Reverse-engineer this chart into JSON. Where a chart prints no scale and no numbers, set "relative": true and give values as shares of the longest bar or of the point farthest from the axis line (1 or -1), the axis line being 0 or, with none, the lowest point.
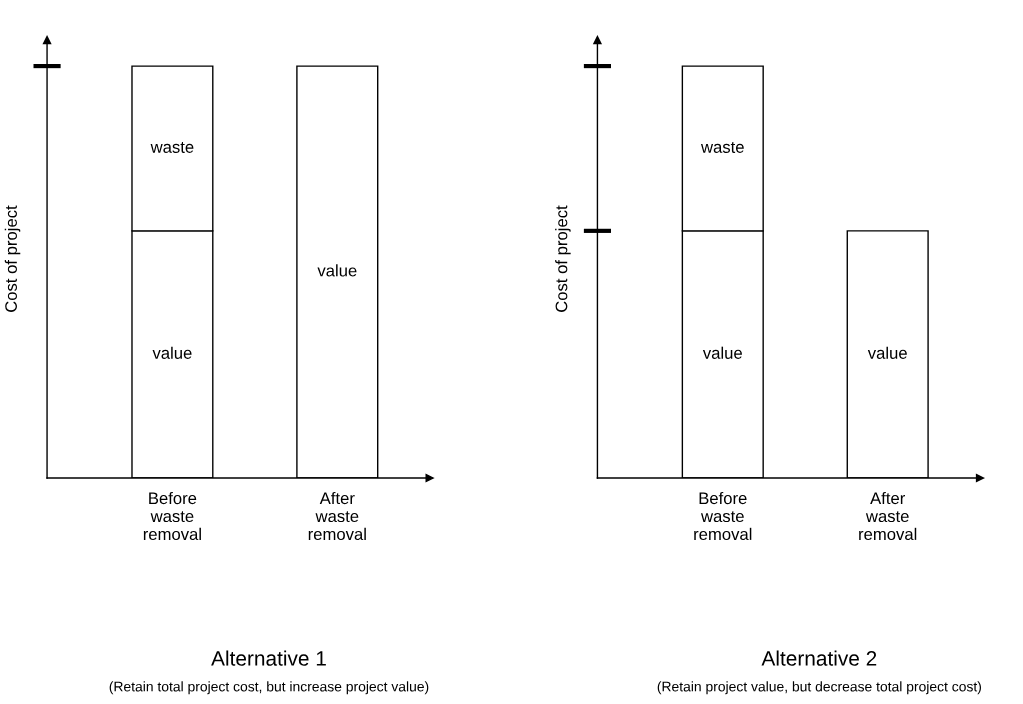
{
  "chart_data": [
    {
      "type": "bar",
      "stacked": true,
      "relative": true,
      "title": "Alternative 1",
      "subtitle": "(Retain total project cost, but increase project value)",
      "ylabel": "Cost of project",
      "categories": [
        "Before waste removal",
        "After waste removal"
      ],
      "series": [
        {
          "name": "value",
          "color": "#ffffff",
          "values": [
            0.6,
            1
          ]
        },
        {
          "name": "waste",
          "color": "#ffffff",
          "values": [
            0.4,
            null
          ]
        }
      ]
    },
    {
      "type": "bar",
      "stacked": true,
      "relative": true,
      "title": "Alternative 2",
      "subtitle": "(Retain project value, but decrease total project cost)",
      "ylabel": "Cost of project",
      "categories": [
        "Before waste removal",
        "After waste removal"
      ],
      "series": [
        {
          "name": "value",
          "color": "#ffffff",
          "values": [
            0.6,
            0.6
          ]
        },
        {
          "name": "waste",
          "color": "#ffffff",
          "values": [
            0.4,
            null
          ]
        }
      ]
    }
  ]
}
